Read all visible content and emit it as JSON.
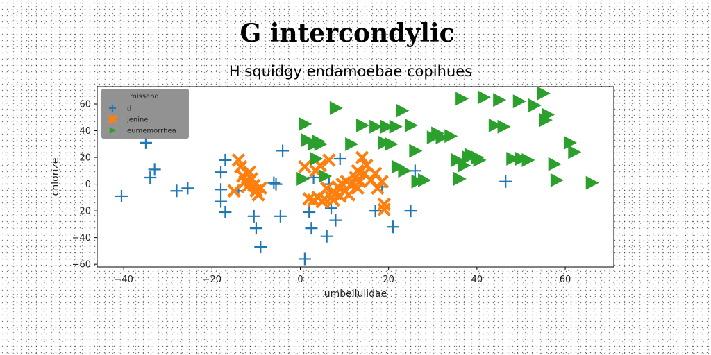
{
  "chart_data": {
    "type": "scatter",
    "title": "G intercondylic",
    "subtitle": "H squidgy endamoebae copihues",
    "xlabel": "umbellulidae",
    "ylabel": "chlorize",
    "xlim": [
      -46,
      71
    ],
    "ylim": [
      -62,
      73
    ],
    "xticks": [
      -40,
      -20,
      0,
      20,
      40,
      60
    ],
    "yticks": [
      -60,
      -40,
      -20,
      0,
      20,
      40,
      60
    ],
    "grid": false,
    "legend": {
      "title": "missend",
      "position": "top-left",
      "background": "#8c8c8c"
    },
    "series": [
      {
        "name": "d",
        "marker": "plus",
        "color": "#1f77b4",
        "points": [
          [
            -40.5,
            -9
          ],
          [
            -35,
            31
          ],
          [
            -34,
            5
          ],
          [
            -33,
            11
          ],
          [
            -28,
            -5
          ],
          [
            -25.5,
            -3
          ],
          [
            -18,
            9
          ],
          [
            -17,
            18
          ],
          [
            -18,
            -4
          ],
          [
            -18,
            -13
          ],
          [
            -17,
            -21
          ],
          [
            -14,
            -5
          ],
          [
            -10.5,
            -24
          ],
          [
            -10,
            -33
          ],
          [
            -9,
            -47
          ],
          [
            -6,
            1
          ],
          [
            -5.5,
            0
          ],
          [
            -4.5,
            -24
          ],
          [
            -4,
            25
          ],
          [
            1,
            -56
          ],
          [
            2,
            -21
          ],
          [
            2.5,
            -33
          ],
          [
            3,
            5
          ],
          [
            6,
            -39
          ],
          [
            6.5,
            0
          ],
          [
            7,
            -18
          ],
          [
            8,
            -27
          ],
          [
            9,
            19
          ],
          [
            17,
            -20
          ],
          [
            18.5,
            -2
          ],
          [
            21,
            -32
          ],
          [
            25,
            -20
          ],
          [
            26,
            10
          ],
          [
            46.5,
            2
          ]
        ]
      },
      {
        "name": "jenine",
        "marker": "x",
        "color": "#ff7f0e",
        "points": [
          [
            -14,
            18
          ],
          [
            -13.5,
            13
          ],
          [
            -13,
            6
          ],
          [
            -12.5,
            2
          ],
          [
            -11.5,
            9
          ],
          [
            -11,
            4
          ],
          [
            -10.5,
            -1
          ],
          [
            -10,
            -5
          ],
          [
            -9.5,
            -8
          ],
          [
            -9,
            -3
          ],
          [
            -15,
            -5
          ],
          [
            -12,
            -2
          ],
          [
            1,
            13
          ],
          [
            2,
            -11
          ],
          [
            3,
            -12
          ],
          [
            3.5,
            10
          ],
          [
            4,
            -10
          ],
          [
            4.5,
            14
          ],
          [
            5,
            -13
          ],
          [
            5.5,
            -11
          ],
          [
            6,
            -3
          ],
          [
            6.5,
            18
          ],
          [
            7,
            -10
          ],
          [
            7.5,
            -12
          ],
          [
            8,
            -7
          ],
          [
            8.5,
            -2
          ],
          [
            9,
            -9
          ],
          [
            9.5,
            0
          ],
          [
            10,
            -5
          ],
          [
            10.5,
            2
          ],
          [
            11,
            -8
          ],
          [
            11.5,
            -1
          ],
          [
            12,
            1
          ],
          [
            12.5,
            5
          ],
          [
            13,
            -3
          ],
          [
            13,
            10
          ],
          [
            13.5,
            2
          ],
          [
            14,
            20
          ],
          [
            14.5,
            8
          ],
          [
            15,
            14
          ],
          [
            16,
            3
          ],
          [
            17,
            8
          ],
          [
            17.5,
            -3
          ],
          [
            18.5,
            2
          ],
          [
            19,
            -15
          ],
          [
            19,
            -19
          ]
        ]
      },
      {
        "name": "eumemorrhea",
        "marker": "triangle-right",
        "color": "#2ca02c",
        "points": [
          [
            0.5,
            4
          ],
          [
            1,
            45
          ],
          [
            1.5,
            33
          ],
          [
            3,
            30
          ],
          [
            3.5,
            19
          ],
          [
            4,
            32
          ],
          [
            4.5,
            30
          ],
          [
            5.5,
            6
          ],
          [
            8,
            57
          ],
          [
            11.5,
            30
          ],
          [
            14,
            44
          ],
          [
            17,
            43
          ],
          [
            19,
            31
          ],
          [
            19.5,
            43
          ],
          [
            20.5,
            30
          ],
          [
            21.5,
            43
          ],
          [
            22,
            13
          ],
          [
            23,
            55
          ],
          [
            23.5,
            10
          ],
          [
            25,
            44
          ],
          [
            26,
            25
          ],
          [
            26.5,
            2
          ],
          [
            28,
            3
          ],
          [
            30,
            35
          ],
          [
            31,
            38
          ],
          [
            32,
            35
          ],
          [
            34,
            36
          ],
          [
            35.5,
            18
          ],
          [
            36,
            4
          ],
          [
            36.5,
            64
          ],
          [
            37,
            14
          ],
          [
            38,
            20
          ],
          [
            38.5,
            22
          ],
          [
            40,
            20
          ],
          [
            40.5,
            18
          ],
          [
            41.5,
            65
          ],
          [
            44,
            44
          ],
          [
            45,
            63
          ],
          [
            46,
            43
          ],
          [
            48,
            19
          ],
          [
            49.5,
            62
          ],
          [
            50,
            19
          ],
          [
            51.5,
            18
          ],
          [
            53,
            59
          ],
          [
            55,
            68
          ],
          [
            55.5,
            48
          ],
          [
            56,
            52
          ],
          [
            57.5,
            15
          ],
          [
            58,
            3
          ],
          [
            61,
            31
          ],
          [
            62,
            24
          ],
          [
            66,
            1
          ]
        ]
      }
    ]
  }
}
